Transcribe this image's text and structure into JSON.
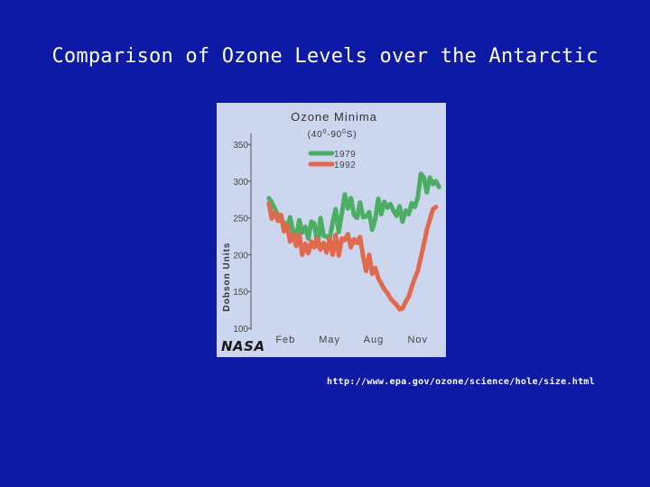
{
  "slide": {
    "title": "Comparison of Ozone Levels over the Antarctic",
    "source_url": "http://www.epa.gov/ozone/science/hole/size.html"
  },
  "logo": {
    "text": "NASA"
  },
  "colors": {
    "background": "#0c1aa6",
    "plot_bg": "#cdd6ef",
    "series_1979": "#4cae62",
    "series_1992": "#e06a4e"
  },
  "chart_data": {
    "type": "line",
    "title": "Ozone Minima",
    "subtitle_prefix": "(40",
    "subtitle_mid": "-90",
    "subtitle_suffix": "S)",
    "subtitle_sup": "0",
    "ylabel": "Dobson Units",
    "ylim": [
      100,
      360
    ],
    "yticks": [
      100,
      150,
      200,
      250,
      300,
      350
    ],
    "xlim": [
      0,
      12
    ],
    "xticks": [
      {
        "label": "Feb",
        "value": 1.8
      },
      {
        "label": "May",
        "value": 4.7
      },
      {
        "label": "Aug",
        "value": 7.6
      },
      {
        "label": "Nov",
        "value": 10.5
      }
    ],
    "grid": false,
    "legend_position": "top-right",
    "series": [
      {
        "name": "1979",
        "color": "#4cae62",
        "points": [
          [
            0.7,
            277
          ],
          [
            0.9,
            271
          ],
          [
            1.1,
            262
          ],
          [
            1.3,
            254
          ],
          [
            1.5,
            246
          ],
          [
            1.7,
            244
          ],
          [
            1.9,
            236
          ],
          [
            2.1,
            251
          ],
          [
            2.3,
            231
          ],
          [
            2.5,
            224
          ],
          [
            2.7,
            247
          ],
          [
            2.9,
            230
          ],
          [
            3.1,
            238
          ],
          [
            3.3,
            222
          ],
          [
            3.5,
            245
          ],
          [
            3.7,
            242
          ],
          [
            3.9,
            212
          ],
          [
            4.1,
            250
          ],
          [
            4.3,
            226
          ],
          [
            4.5,
            225
          ],
          [
            4.7,
            221
          ],
          [
            4.9,
            244
          ],
          [
            5.1,
            262
          ],
          [
            5.3,
            231
          ],
          [
            5.5,
            256
          ],
          [
            5.7,
            282
          ],
          [
            5.9,
            263
          ],
          [
            6.1,
            277
          ],
          [
            6.3,
            254
          ],
          [
            6.5,
            250
          ],
          [
            6.7,
            271
          ],
          [
            6.9,
            251
          ],
          [
            7.1,
            252
          ],
          [
            7.3,
            258
          ],
          [
            7.5,
            234
          ],
          [
            7.7,
            248
          ],
          [
            7.9,
            276
          ],
          [
            8.1,
            255
          ],
          [
            8.3,
            272
          ],
          [
            8.5,
            264
          ],
          [
            8.7,
            269
          ],
          [
            8.9,
            260
          ],
          [
            9.1,
            253
          ],
          [
            9.3,
            266
          ],
          [
            9.5,
            245
          ],
          [
            9.7,
            260
          ],
          [
            9.9,
            255
          ],
          [
            10.1,
            270
          ],
          [
            10.3,
            265
          ],
          [
            10.5,
            278
          ],
          [
            10.7,
            310
          ],
          [
            10.9,
            305
          ],
          [
            11.1,
            285
          ],
          [
            11.3,
            305
          ],
          [
            11.5,
            296
          ],
          [
            11.7,
            300
          ],
          [
            11.9,
            292
          ]
        ]
      },
      {
        "name": "1992",
        "color": "#e06a4e",
        "points": [
          [
            0.7,
            270
          ],
          [
            0.9,
            249
          ],
          [
            1.1,
            258
          ],
          [
            1.3,
            246
          ],
          [
            1.5,
            254
          ],
          [
            1.7,
            232
          ],
          [
            1.9,
            241
          ],
          [
            2.1,
            218
          ],
          [
            2.3,
            228
          ],
          [
            2.5,
            212
          ],
          [
            2.7,
            228
          ],
          [
            2.9,
            200
          ],
          [
            3.1,
            215
          ],
          [
            3.3,
            202
          ],
          [
            3.5,
            218
          ],
          [
            3.7,
            210
          ],
          [
            3.9,
            223
          ],
          [
            4.1,
            207
          ],
          [
            4.3,
            216
          ],
          [
            4.5,
            203
          ],
          [
            4.7,
            222
          ],
          [
            4.9,
            200
          ],
          [
            5.1,
            227
          ],
          [
            5.3,
            199
          ],
          [
            5.5,
            222
          ],
          [
            5.7,
            220
          ],
          [
            5.9,
            228
          ],
          [
            6.1,
            210
          ],
          [
            6.3,
            221
          ],
          [
            6.5,
            216
          ],
          [
            6.7,
            224
          ],
          [
            6.9,
            198
          ],
          [
            7.1,
            178
          ],
          [
            7.3,
            200
          ],
          [
            7.5,
            174
          ],
          [
            7.7,
            182
          ],
          [
            7.9,
            168
          ],
          [
            8.1,
            161
          ],
          [
            8.3,
            153
          ],
          [
            8.5,
            148
          ],
          [
            8.7,
            141
          ],
          [
            8.9,
            136
          ],
          [
            9.1,
            132
          ],
          [
            9.3,
            126
          ],
          [
            9.5,
            127
          ],
          [
            9.7,
            136
          ],
          [
            9.9,
            143
          ],
          [
            10.1,
            156
          ],
          [
            10.3,
            168
          ],
          [
            10.5,
            178
          ],
          [
            10.7,
            196
          ],
          [
            10.9,
            214
          ],
          [
            11.1,
            234
          ],
          [
            11.3,
            248
          ],
          [
            11.5,
            262
          ],
          [
            11.7,
            265
          ]
        ]
      }
    ]
  }
}
